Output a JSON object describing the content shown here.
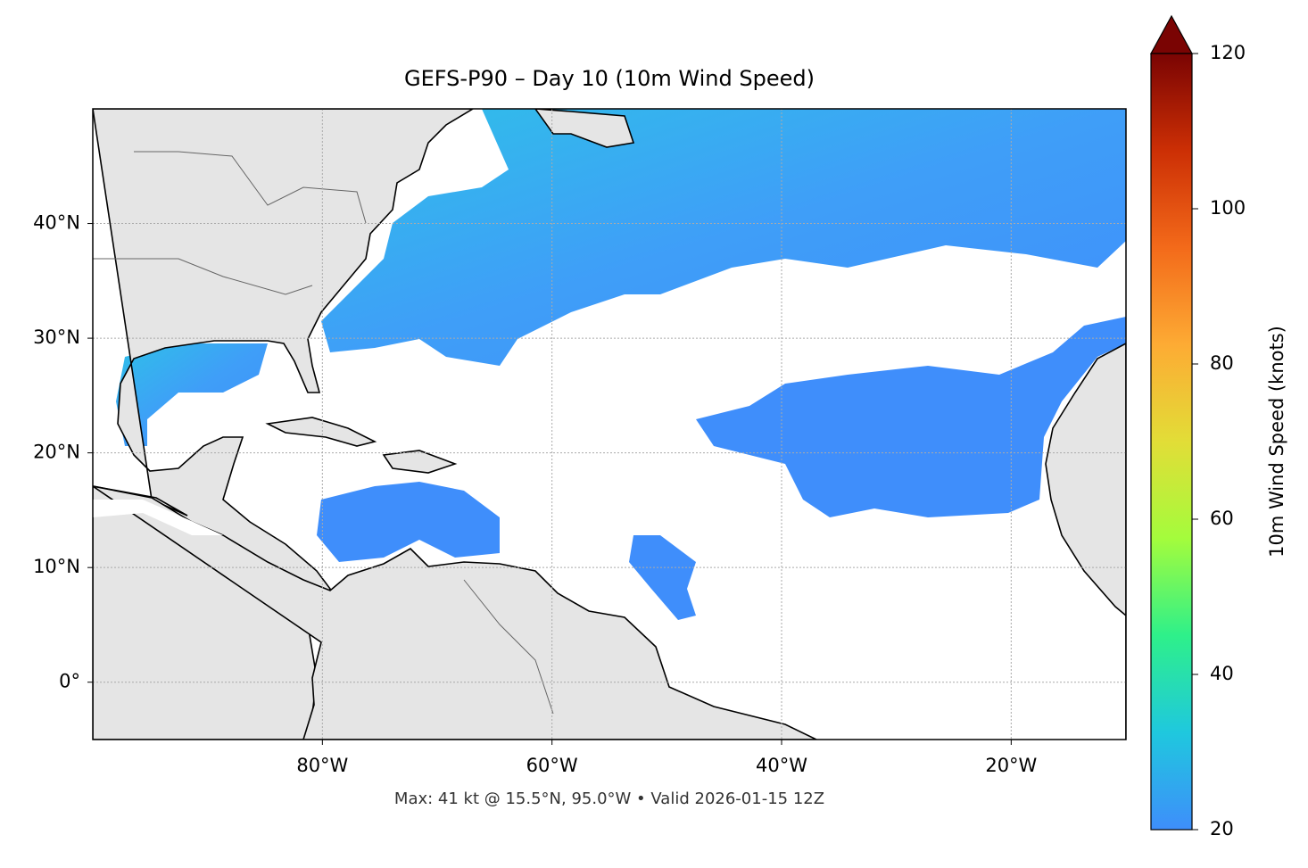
{
  "map": {
    "title": "GEFS-P90 – Day 10 (10m Wind Speed)",
    "footer": "Max: 41 kt @ 15.5°N, 95.0°W • Valid 2026-01-15 12Z",
    "xlim": [
      -100,
      -10
    ],
    "ylim": [
      -5,
      50
    ],
    "xticks": [
      {
        "value": -80,
        "label": "80°W"
      },
      {
        "value": -60,
        "label": "60°W"
      },
      {
        "value": -40,
        "label": "40°W"
      },
      {
        "value": -20,
        "label": "20°W"
      }
    ],
    "yticks": [
      {
        "value": 0,
        "label": "0°"
      },
      {
        "value": 10,
        "label": "10°N"
      },
      {
        "value": 20,
        "label": "20°N"
      },
      {
        "value": 30,
        "label": "30°N"
      },
      {
        "value": 40,
        "label": "40°N"
      }
    ],
    "grid": true,
    "colorbar": {
      "label": "10m Wind Speed (knots)",
      "range": [
        20,
        120
      ],
      "ticks": [
        20,
        40,
        60,
        80,
        100,
        120
      ],
      "colormap": [
        "#3e8efb",
        "#1fc8de",
        "#2ef08a",
        "#a4fc3c",
        "#e2dd37",
        "#fdab34",
        "#f36a1a",
        "#cc2f05",
        "#7a0403"
      ]
    }
  }
}
